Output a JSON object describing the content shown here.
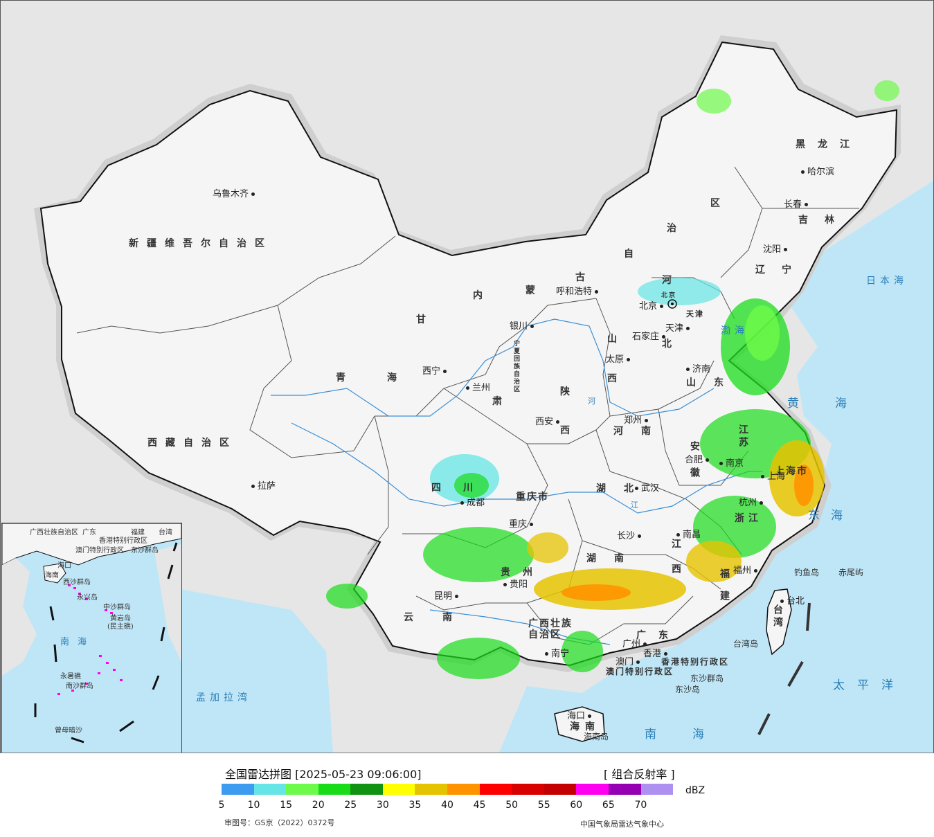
{
  "map": {
    "provinces": [
      {
        "id": "xinjiang",
        "label": "新疆维吾尔自治区"
      },
      {
        "id": "xizang",
        "label": "西藏自治区"
      },
      {
        "id": "qinghai",
        "label": "青海"
      },
      {
        "id": "gansu",
        "label": "甘"
      },
      {
        "id": "neimenggu-1",
        "label": "内"
      },
      {
        "id": "neimenggu-2",
        "label": "蒙"
      },
      {
        "id": "neimenggu-3",
        "label": "古"
      },
      {
        "id": "neimenggu-4",
        "label": "自"
      },
      {
        "id": "neimenggu-5",
        "label": "治"
      },
      {
        "id": "neimenggu-6",
        "label": "区"
      },
      {
        "id": "heilongjiang",
        "label": "黑龙江"
      },
      {
        "id": "jilin",
        "label": "吉林"
      },
      {
        "id": "liaoning",
        "label": "辽宁"
      },
      {
        "id": "hebei-1",
        "label": "河"
      },
      {
        "id": "hebei-2",
        "label": "北"
      },
      {
        "id": "shanxi-1",
        "label": "山"
      },
      {
        "id": "shanxi-2",
        "label": "西"
      },
      {
        "id": "shandong",
        "label": "山东"
      },
      {
        "id": "henan",
        "label": "河南"
      },
      {
        "id": "shaanxi-1",
        "label": "陕"
      },
      {
        "id": "shaanxi-2",
        "label": "西"
      },
      {
        "id": "ningxia",
        "label": "宁夏回族自治区"
      },
      {
        "id": "sichuan",
        "label": "四川"
      },
      {
        "id": "chongqing",
        "label": "重庆市"
      },
      {
        "id": "hubei",
        "label": "湖北"
      },
      {
        "id": "hunan",
        "label": "湖南"
      },
      {
        "id": "guizhou",
        "label": "贵州"
      },
      {
        "id": "yunnan",
        "label": "云南"
      },
      {
        "id": "guangxi",
        "label": "广西壮族自治区"
      },
      {
        "id": "guangdong",
        "label": "广东"
      },
      {
        "id": "jiangxi",
        "label": "江西"
      },
      {
        "id": "fujian",
        "label": "福建"
      },
      {
        "id": "zhejiang",
        "label": "浙江"
      },
      {
        "id": "anhui",
        "label": "安徽"
      },
      {
        "id": "jiangsu",
        "label": "江苏"
      },
      {
        "id": "shanghai",
        "label": "上海市"
      },
      {
        "id": "taiwan",
        "label": "台湾"
      },
      {
        "id": "hainan",
        "label": "海南"
      },
      {
        "id": "hainan-island",
        "label": "海南岛"
      },
      {
        "id": "hongkong",
        "label": "香港特别行政区"
      },
      {
        "id": "macau",
        "label": "澳门特别行政区"
      },
      {
        "id": "tianjin",
        "label": "天津"
      },
      {
        "id": "beijing-prov",
        "label": "北京"
      },
      {
        "id": "gansu-2",
        "label": "肃"
      }
    ],
    "cities": [
      {
        "id": "urumqi",
        "label": "乌鲁木齐"
      },
      {
        "id": "lhasa",
        "label": "拉萨"
      },
      {
        "id": "xining",
        "label": "西宁"
      },
      {
        "id": "lanzhou",
        "label": "兰州"
      },
      {
        "id": "yinchuan",
        "label": "银川"
      },
      {
        "id": "hohhot",
        "label": "呼和浩特"
      },
      {
        "id": "harbin",
        "label": "哈尔滨"
      },
      {
        "id": "changchun",
        "label": "长春"
      },
      {
        "id": "shenyang",
        "label": "沈阳"
      },
      {
        "id": "beijing",
        "label": "北京"
      },
      {
        "id": "tianjin-city",
        "label": "天津"
      },
      {
        "id": "shijiazhuang",
        "label": "石家庄"
      },
      {
        "id": "taiyuan",
        "label": "太原"
      },
      {
        "id": "jinan",
        "label": "济南"
      },
      {
        "id": "zhengzhou",
        "label": "郑州"
      },
      {
        "id": "xian",
        "label": "西安"
      },
      {
        "id": "chengdu",
        "label": "成都"
      },
      {
        "id": "chongqing-city",
        "label": "重庆"
      },
      {
        "id": "wuhan",
        "label": "武汉"
      },
      {
        "id": "hefei",
        "label": "合肥"
      },
      {
        "id": "nanjing",
        "label": "南京"
      },
      {
        "id": "shanghai-city",
        "label": "上海"
      },
      {
        "id": "hangzhou",
        "label": "杭州"
      },
      {
        "id": "nanchang",
        "label": "南昌"
      },
      {
        "id": "changsha",
        "label": "长沙"
      },
      {
        "id": "fuzhou",
        "label": "福州"
      },
      {
        "id": "guiyang",
        "label": "贵阳"
      },
      {
        "id": "kunming",
        "label": "昆明"
      },
      {
        "id": "nanning",
        "label": "南宁"
      },
      {
        "id": "guangzhou",
        "label": "广州"
      },
      {
        "id": "aomen",
        "label": "澳门"
      },
      {
        "id": "xianggang",
        "label": "香港"
      },
      {
        "id": "haikou",
        "label": "海口"
      },
      {
        "id": "taibei",
        "label": "台北"
      }
    ],
    "seas": [
      {
        "id": "bohai",
        "label": "渤海"
      },
      {
        "id": "huanghai",
        "label": "黄海"
      },
      {
        "id": "donghai",
        "label": "东海"
      },
      {
        "id": "nanhai",
        "label": "南海"
      },
      {
        "id": "taipingyang",
        "label": "太平洋"
      },
      {
        "id": "ribenhai",
        "label": "日本海"
      },
      {
        "id": "mengjialawan",
        "label": "孟加拉湾"
      }
    ],
    "islands": [
      {
        "id": "diaoyudao",
        "label": "钓鱼岛"
      },
      {
        "id": "chiweiyu",
        "label": "赤尾屿"
      },
      {
        "id": "taiwandao",
        "label": "台湾岛"
      },
      {
        "id": "dongsha-qundao",
        "label": "东沙群岛"
      },
      {
        "id": "dongshadao",
        "label": "东沙岛"
      }
    ],
    "rivers": [
      {
        "id": "huanghe-label",
        "label": "河"
      },
      {
        "id": "changjiang-label",
        "label": "江"
      }
    ]
  },
  "inset": {
    "labels": [
      {
        "id": "inset-guangxi",
        "label": "广西壮族自治区"
      },
      {
        "id": "inset-guangdong",
        "label": "广东"
      },
      {
        "id": "inset-fujian",
        "label": "福建"
      },
      {
        "id": "inset-taiwan",
        "label": "台湾"
      },
      {
        "id": "inset-xianggang",
        "label": "香港特别行政区"
      },
      {
        "id": "inset-aomen",
        "label": "澳门特别行政区"
      },
      {
        "id": "inset-dongsha",
        "label": "东沙群岛"
      },
      {
        "id": "inset-haikou",
        "label": "海口"
      },
      {
        "id": "inset-hainan",
        "label": "海南"
      },
      {
        "id": "inset-xisha",
        "label": "西沙群岛"
      },
      {
        "id": "inset-yongxing",
        "label": "永兴岛"
      },
      {
        "id": "inset-zhongsha",
        "label": "中沙群岛"
      },
      {
        "id": "inset-huangyan",
        "label": "黄岩岛"
      },
      {
        "id": "inset-minzhu",
        "label": "(民主礁)"
      },
      {
        "id": "inset-nanhai",
        "label": "南海"
      },
      {
        "id": "inset-yongshu",
        "label": "永暑礁"
      },
      {
        "id": "inset-nansha",
        "label": "南沙群岛"
      },
      {
        "id": "inset-zengmu",
        "label": "曾母暗沙"
      }
    ]
  },
  "legend": {
    "title": "全国雷达拼图 [2025-05-23 09:06:00]",
    "product": "[ 组合反射率 ]",
    "unit": "dBZ",
    "colors": [
      "#3d9bf0",
      "#65e5e5",
      "#6efa4a",
      "#19dc19",
      "#129212",
      "#ffff00",
      "#e6c300",
      "#ff9400",
      "#ff0000",
      "#d90000",
      "#c40000",
      "#ff00f0",
      "#9600b3",
      "#ad90f0"
    ],
    "ticks": [
      "5",
      "10",
      "15",
      "20",
      "25",
      "30",
      "35",
      "40",
      "45",
      "50",
      "55",
      "60",
      "65",
      "70"
    ],
    "review_number": "审图号：GS京（2022）0372号",
    "source": "中国气象局雷达气象中心"
  },
  "colors": {
    "land": "#f5f5f5",
    "ocean": "#bfe6f7",
    "foreign_land": "#e6e6e6",
    "border": "#111111",
    "river": "#3b8fd6"
  }
}
